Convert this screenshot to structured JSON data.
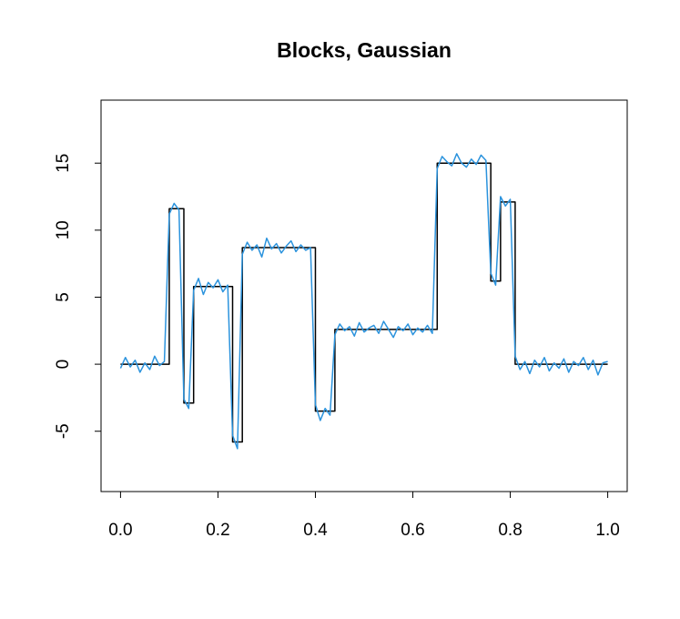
{
  "chart_data": {
    "type": "line",
    "title": "Blocks, Gaussian",
    "xlim": [
      -0.04,
      1.04
    ],
    "ylim": [
      -9.5,
      19.7
    ],
    "xticks": [
      {
        "value": 0,
        "label": "0.0"
      },
      {
        "value": 0.2,
        "label": "0.2"
      },
      {
        "value": 0.4,
        "label": "0.4"
      },
      {
        "value": 0.6,
        "label": "0.6"
      },
      {
        "value": 0.8,
        "label": "0.8"
      },
      {
        "value": 1,
        "label": "1.0"
      }
    ],
    "yticks": [
      -5,
      0,
      5,
      10,
      15
    ],
    "series": [
      {
        "color": "#000000",
        "x": [
          0,
          0.1,
          0.1,
          0.13,
          0.13,
          0.15,
          0.15,
          0.23,
          0.23,
          0.25,
          0.25,
          0.4,
          0.4,
          0.44,
          0.44,
          0.65,
          0.65,
          0.76,
          0.76,
          0.78,
          0.78,
          0.81,
          0.81,
          1
        ],
        "values": [
          0,
          0,
          11.6,
          11.6,
          -2.9,
          -2.9,
          5.8,
          5.8,
          -5.8,
          -5.8,
          8.7,
          8.7,
          -3.5,
          -3.5,
          2.6,
          2.6,
          15,
          15,
          6.2,
          6.2,
          12.1,
          12.1,
          0,
          0
        ]
      },
      {
        "color": "#2b93dd",
        "x": [
          0,
          0.01,
          0.02,
          0.03,
          0.04,
          0.05,
          0.06,
          0.07,
          0.08,
          0.09,
          0.1,
          0.11,
          0.12,
          0.13,
          0.14,
          0.15,
          0.16,
          0.17,
          0.18,
          0.19,
          0.2,
          0.21,
          0.22,
          0.23,
          0.24,
          0.25,
          0.26,
          0.27,
          0.28,
          0.29,
          0.3,
          0.31,
          0.32,
          0.33,
          0.34,
          0.35,
          0.36,
          0.37,
          0.38,
          0.39,
          0.4,
          0.41,
          0.42,
          0.43,
          0.44,
          0.45,
          0.46,
          0.47,
          0.48,
          0.49,
          0.5,
          0.51,
          0.52,
          0.53,
          0.54,
          0.55,
          0.56,
          0.57,
          0.58,
          0.59,
          0.6,
          0.61,
          0.62,
          0.63,
          0.64,
          0.65,
          0.66,
          0.67,
          0.68,
          0.69,
          0.7,
          0.71,
          0.72,
          0.73,
          0.74,
          0.75,
          0.76,
          0.77,
          0.78,
          0.79,
          0.8,
          0.81,
          0.82,
          0.83,
          0.84,
          0.85,
          0.86,
          0.87,
          0.88,
          0.89,
          0.9,
          0.91,
          0.92,
          0.93,
          0.94,
          0.95,
          0.96,
          0.97,
          0.98,
          0.99,
          1
        ],
        "values": [
          -0.3,
          0.5,
          -0.2,
          0.3,
          -0.6,
          0.1,
          -0.4,
          0.6,
          -0.1,
          0.2,
          11.2,
          12.0,
          11.5,
          -2.6,
          -3.3,
          5.5,
          6.4,
          5.2,
          6.1,
          5.7,
          6.3,
          5.4,
          5.9,
          -5.3,
          -6.3,
          8.2,
          9.1,
          8.5,
          8.9,
          8.0,
          9.4,
          8.6,
          9.0,
          8.3,
          8.8,
          9.2,
          8.4,
          8.9,
          8.5,
          8.7,
          -3.0,
          -4.2,
          -3.3,
          -3.8,
          2.2,
          3.0,
          2.5,
          2.8,
          2.1,
          3.1,
          2.4,
          2.7,
          2.9,
          2.3,
          3.2,
          2.6,
          2.0,
          2.8,
          2.5,
          3.0,
          2.2,
          2.7,
          2.4,
          2.9,
          2.3,
          14.6,
          15.5,
          15.1,
          14.8,
          15.7,
          15.0,
          14.7,
          15.3,
          14.9,
          15.6,
          15.2,
          6.8,
          5.9,
          12.5,
          11.8,
          12.3,
          0.6,
          -0.4,
          0.2,
          -0.7,
          0.3,
          -0.2,
          0.5,
          -0.5,
          0.1,
          -0.3,
          0.4,
          -0.6,
          0.2,
          -0.1,
          0.5,
          -0.4,
          0.3,
          -0.8,
          0.1,
          0.2
        ]
      }
    ]
  }
}
